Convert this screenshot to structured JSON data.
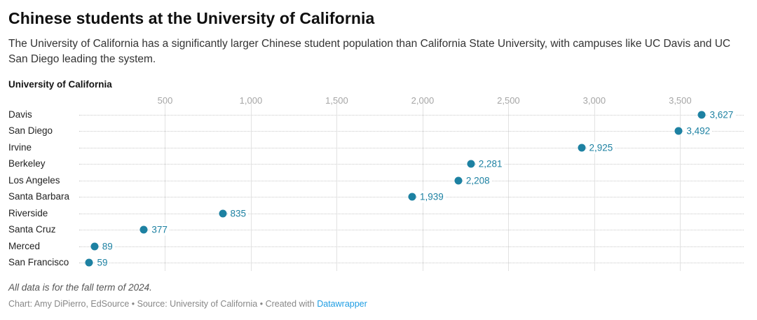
{
  "header": {
    "title": "Chinese students at the University of California",
    "description": "The University of California has a significantly larger Chinese student population than California State University, with campuses like UC Davis and UC San Diego leading the system."
  },
  "chart_data": {
    "type": "scatter",
    "subtype": "dot-plot",
    "group_label": "University of California",
    "categories": [
      "Davis",
      "San Diego",
      "Irvine",
      "Berkeley",
      "Los Angeles",
      "Santa Barbara",
      "Riverside",
      "Santa Cruz",
      "Merced",
      "San Francisco"
    ],
    "values": [
      3627,
      3492,
      2925,
      2281,
      2208,
      1939,
      835,
      377,
      89,
      59
    ],
    "value_labels": [
      "3,627",
      "3,492",
      "2,925",
      "2,281",
      "2,208",
      "1,939",
      "835",
      "377",
      "89",
      "59"
    ],
    "x_ticks": [
      500,
      1000,
      1500,
      2000,
      2500,
      3000,
      3500
    ],
    "x_tick_labels": [
      "500",
      "1,000",
      "1,500",
      "2,000",
      "2,500",
      "3,000",
      "3,500"
    ],
    "xlim": [
      0,
      3870
    ],
    "grid": "vertical-solid-and-horizontal-dotted",
    "legend": "none",
    "dot_color": "#1d81a2",
    "tick_label_color": "#a5a5a5"
  },
  "footer": {
    "note": "All data is for the fall term of 2024.",
    "credit": "Chart: Amy DiPierro, EdSource",
    "source": "Source: University of California",
    "created_with": "Created with",
    "link_label": "Datawrapper",
    "separator": " • ",
    "link_color": "#1e9de3"
  }
}
